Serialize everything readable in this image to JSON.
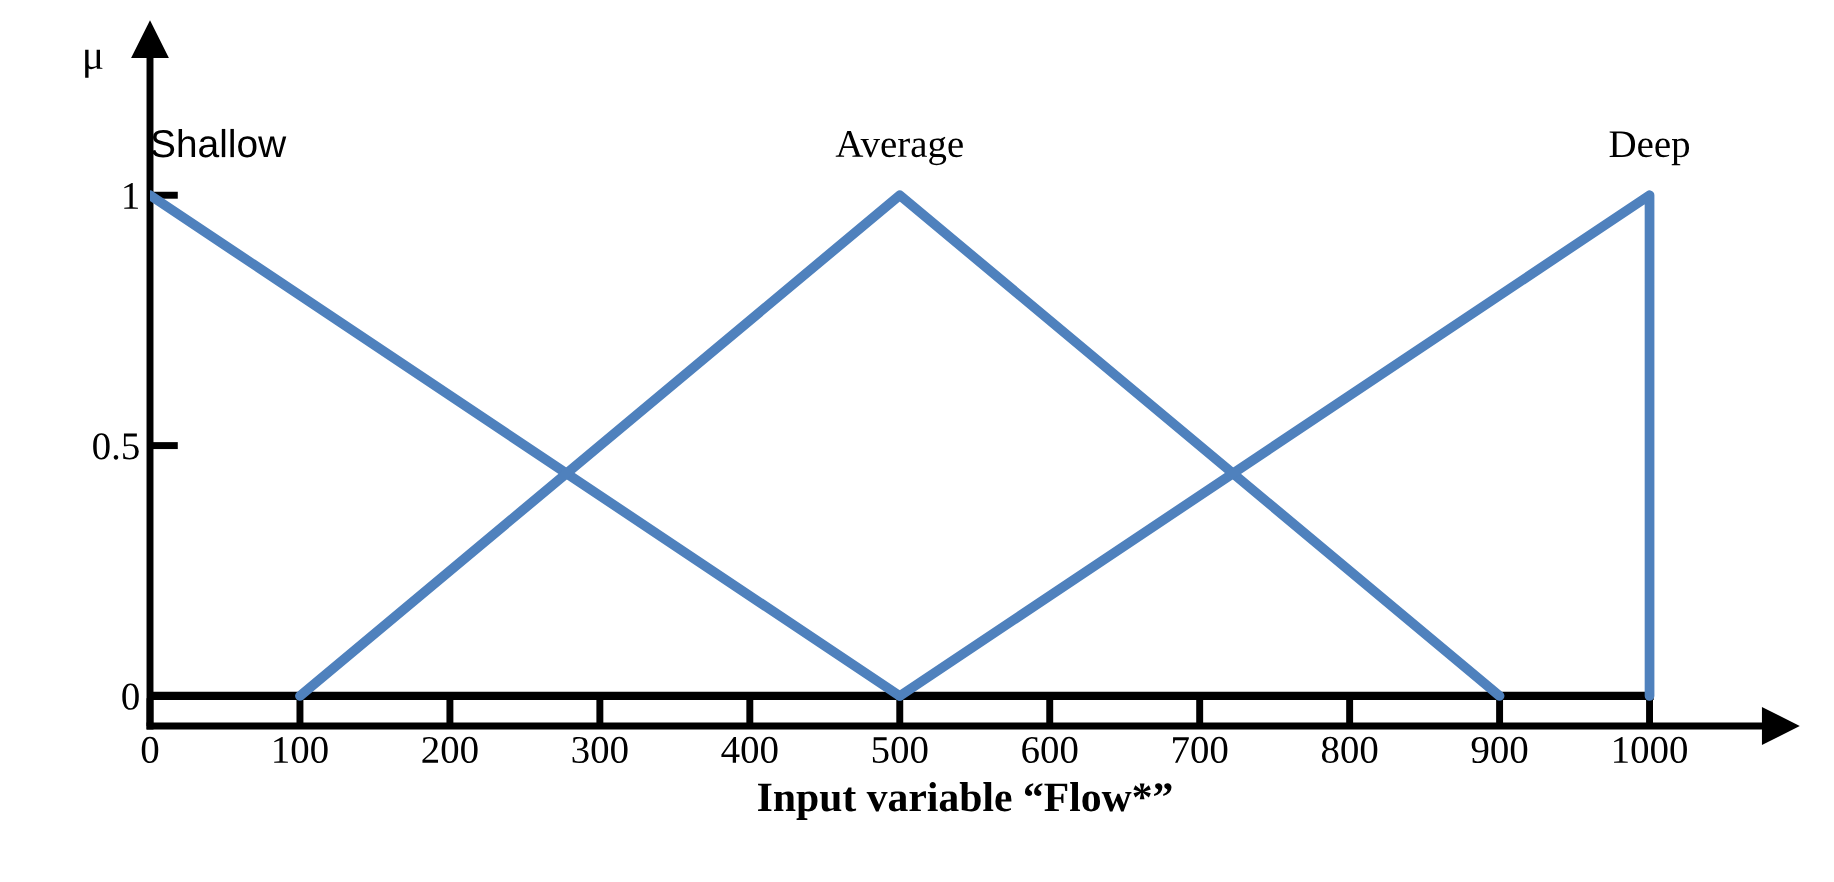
{
  "chart_data": {
    "type": "line",
    "xlabel": "Input variable “Flow*”",
    "ylabel": "μ",
    "series": [
      {
        "name": "Shallow",
        "color": "#4f81bd",
        "x": [
          0,
          500
        ],
        "values": [
          1,
          0
        ]
      },
      {
        "name": "Average",
        "color": "#4f81bd",
        "x": [
          100,
          500,
          900
        ],
        "values": [
          0,
          1,
          0
        ]
      },
      {
        "name": "Deep",
        "color": "#4f81bd",
        "x": [
          500,
          1000,
          1000
        ],
        "values": [
          0,
          1,
          0
        ]
      }
    ],
    "xlim": [
      0,
      1087
    ],
    "ylim": [
      -0.06,
      1.31
    ],
    "xticks": [
      0,
      100,
      200,
      300,
      400,
      500,
      600,
      700,
      800,
      900,
      1000
    ],
    "yticks": [
      0,
      0.5,
      1
    ],
    "ref_lines": [
      {
        "axis": "y",
        "value": 0,
        "color": "#000000"
      }
    ],
    "grid": false,
    "legend": false,
    "marker": "none",
    "line_style": "solid"
  }
}
